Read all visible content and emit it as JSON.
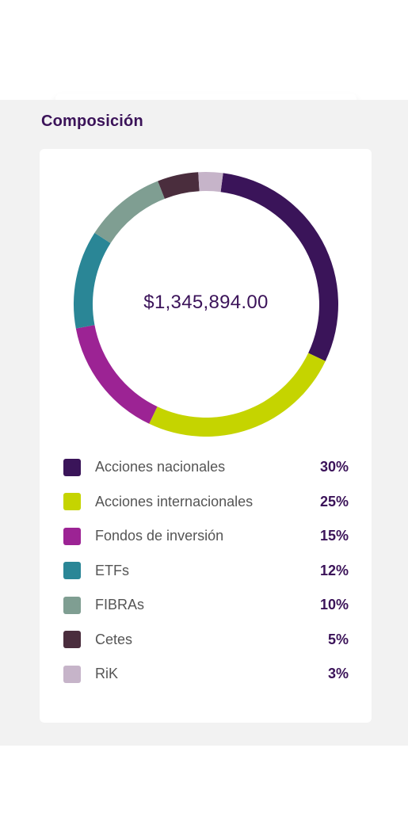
{
  "section": {
    "title": "Composición"
  },
  "portfolio": {
    "total": "$1,345,894.00"
  },
  "composition": [
    {
      "label": "Acciones nacionales",
      "percent": "30%",
      "value": 30,
      "color": "#3a1459"
    },
    {
      "label": "Acciones internacionales",
      "percent": "25%",
      "value": 25,
      "color": "#c5d400"
    },
    {
      "label": "Fondos de inversión",
      "percent": "15%",
      "value": 15,
      "color": "#9c2394"
    },
    {
      "label": "ETFs",
      "percent": "12%",
      "value": 12,
      "color": "#2a8696"
    },
    {
      "label": "FIBRAs",
      "percent": "10%",
      "value": 10,
      "color": "#7f9e92"
    },
    {
      "label": "Cetes",
      "percent": "5%",
      "value": 5,
      "color": "#4a2d3d"
    },
    {
      "label": "RiK",
      "percent": "3%",
      "value": 3,
      "color": "#c6b4c9"
    }
  ],
  "chart_data": {
    "type": "pie",
    "categories": [
      "Acciones nacionales",
      "Acciones internacionales",
      "Fondos de inversión",
      "ETFs",
      "FIBRAs",
      "Cetes",
      "RiK"
    ],
    "values": [
      30,
      25,
      15,
      12,
      10,
      5,
      3
    ],
    "title": "Composición",
    "legend": "bottom"
  }
}
